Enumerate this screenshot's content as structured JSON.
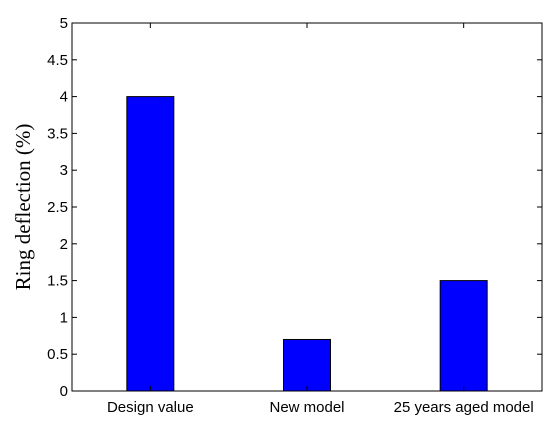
{
  "chart_data": {
    "type": "bar",
    "categories": [
      "Design value",
      "New model",
      "25 years aged model"
    ],
    "values": [
      4,
      0.7,
      1.5
    ],
    "title": "",
    "xlabel": "",
    "ylabel": "Ring deflection (%)",
    "ylim": [
      0,
      5
    ],
    "yticks": [
      0,
      0.5,
      1,
      1.5,
      2,
      2.5,
      3,
      3.5,
      4,
      4.5,
      5
    ],
    "ytick_labels": [
      "0",
      "0.5",
      "1",
      "1.5",
      "2",
      "2.5",
      "3",
      "3.5",
      "4",
      "4.5",
      "5"
    ],
    "grid": false,
    "legend": "none",
    "bar_color": "#0000ff"
  }
}
